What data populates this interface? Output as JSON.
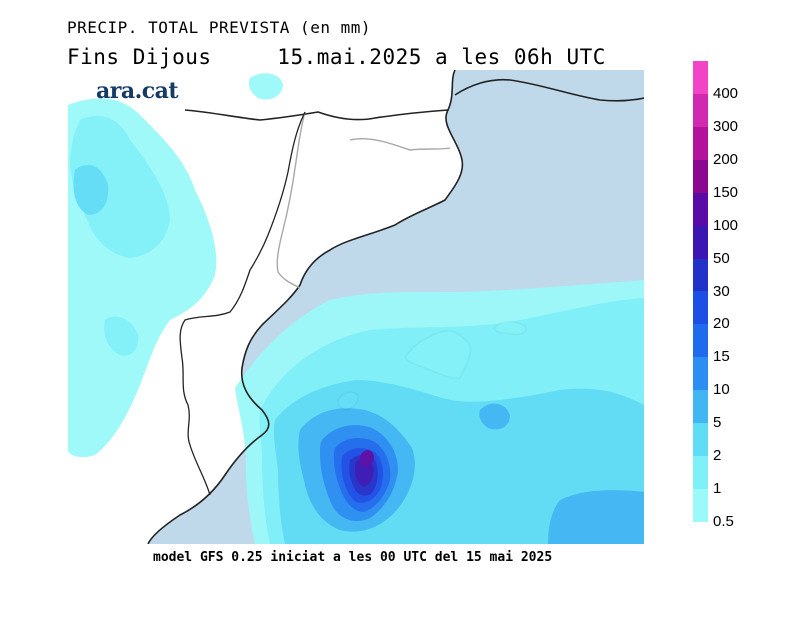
{
  "header": {
    "title": "PRECIP. TOTAL PREVISTA (en mm)",
    "period": "Fins Dijous",
    "valid_time": "15.mai.2025 a les 06h UTC"
  },
  "brand": {
    "logo_text": "ara.cat"
  },
  "footer": {
    "model_info": "model GFS 0.25 iniciat a les 00 UTC del 15 mai 2025"
  },
  "legend": {
    "unit": "mm",
    "levels": [
      "0.5",
      "1",
      "2",
      "5",
      "10",
      "15",
      "20",
      "30",
      "50",
      "100",
      "150",
      "200",
      "300",
      "400"
    ],
    "colors": [
      "#9cf9f9",
      "#7ff0f8",
      "#5fdcf6",
      "#41b6f3",
      "#2a8ef2",
      "#1f6bee",
      "#1d4ee6",
      "#2231c8",
      "#3a17b3",
      "#5a0aa6",
      "#8c078f",
      "#b3129a",
      "#d02ab3",
      "#f144c6"
    ]
  },
  "map_colors": {
    "sea": "#bfd8ea",
    "land": "#ffffff",
    "coast": "#222222",
    "border": "#a8a8a8"
  }
}
